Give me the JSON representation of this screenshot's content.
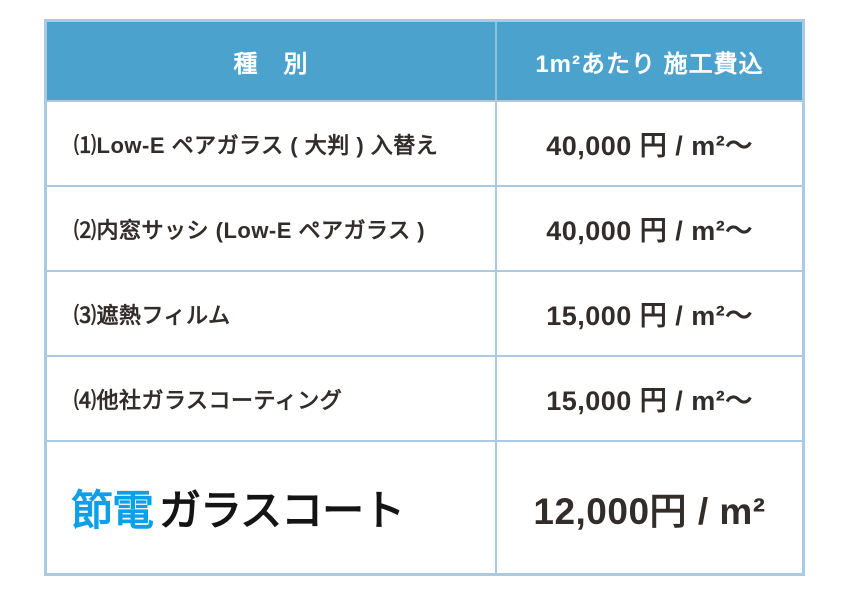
{
  "colors": {
    "header_bg": "#4BA2CD",
    "border_blue": "#A9CAE2",
    "text_dark": "#322C2A",
    "logo_blue": "#0DA0E8",
    "logo_black": "#141414"
  },
  "header": {
    "type_label": "種　別",
    "price_label": "1m²あたり 施工費込"
  },
  "rows": [
    {
      "label": "⑴Low-E ペアガラス ( 大判 ) 入替え",
      "price": "40,000 円 / m²〜"
    },
    {
      "label": "⑵内窓サッシ (Low-E ペアガラス )",
      "price": "40,000 円 / m²〜"
    },
    {
      "label": "⑶遮熱フィルム",
      "price": "15,000 円 / m²〜"
    },
    {
      "label": "⑷他社ガラスコーティング",
      "price": "15,000 円 / m²〜"
    }
  ],
  "highlight_row": {
    "brand_blue": "節電",
    "brand_black": "ガラスコート",
    "price": "12,000円 / m²"
  }
}
